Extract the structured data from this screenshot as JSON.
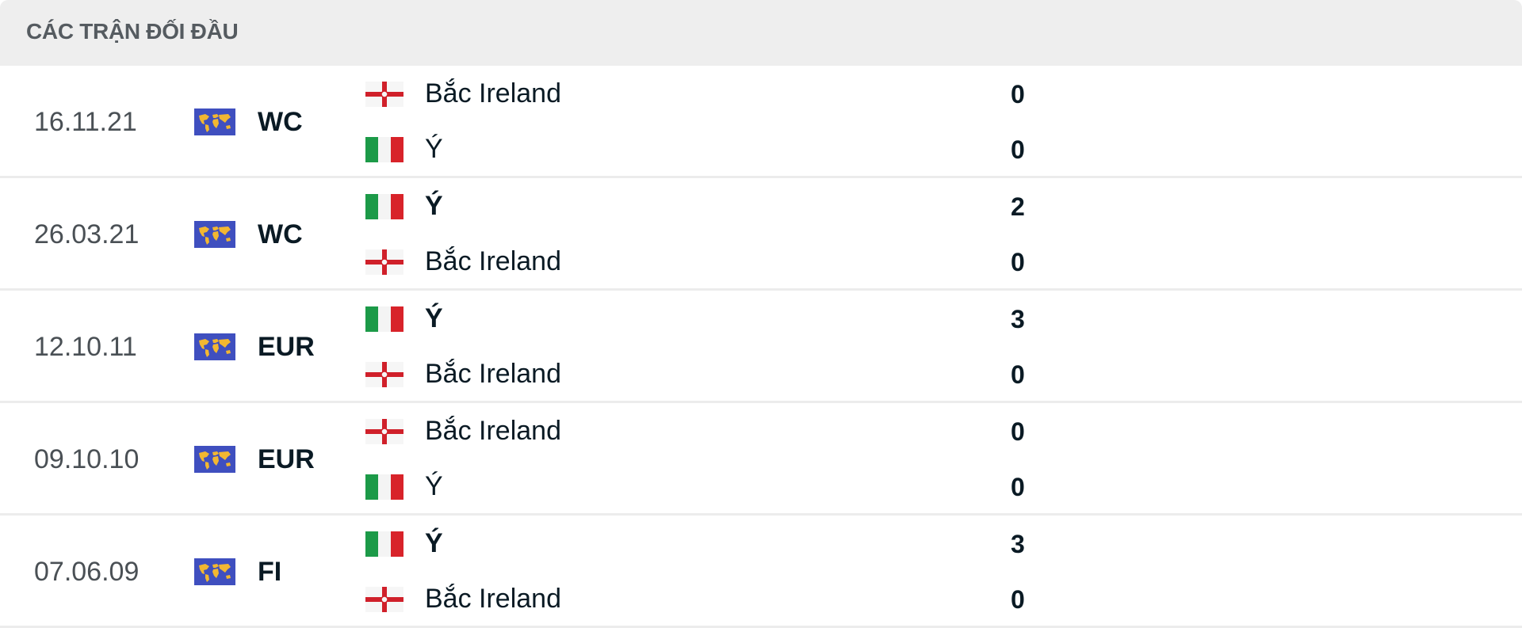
{
  "header": {
    "title": "CÁC TRẬN ĐỐI ĐẦU"
  },
  "colors": {
    "comp_icon_bg": "#3f4fbf",
    "comp_icon_map": "#f2b731",
    "italy_green": "#1c9a48",
    "italy_red": "#d8232a",
    "ni_red": "#d0202a"
  },
  "matches": [
    {
      "date": "16.11.21",
      "competition": "WC",
      "competition_icon": "world-map-icon",
      "home": {
        "name": "Bắc Ireland",
        "flag": "northern-ireland-flag",
        "score": "0",
        "winner": false
      },
      "away": {
        "name": "Ý",
        "flag": "italy-flag",
        "score": "0",
        "winner": false
      }
    },
    {
      "date": "26.03.21",
      "competition": "WC",
      "competition_icon": "world-map-icon",
      "home": {
        "name": "Ý",
        "flag": "italy-flag",
        "score": "2",
        "winner": true
      },
      "away": {
        "name": "Bắc Ireland",
        "flag": "northern-ireland-flag",
        "score": "0",
        "winner": false
      }
    },
    {
      "date": "12.10.11",
      "competition": "EUR",
      "competition_icon": "world-map-icon",
      "home": {
        "name": "Ý",
        "flag": "italy-flag",
        "score": "3",
        "winner": true
      },
      "away": {
        "name": "Bắc Ireland",
        "flag": "northern-ireland-flag",
        "score": "0",
        "winner": false
      }
    },
    {
      "date": "09.10.10",
      "competition": "EUR",
      "competition_icon": "world-map-icon",
      "home": {
        "name": "Bắc Ireland",
        "flag": "northern-ireland-flag",
        "score": "0",
        "winner": false
      },
      "away": {
        "name": "Ý",
        "flag": "italy-flag",
        "score": "0",
        "winner": false
      }
    },
    {
      "date": "07.06.09",
      "competition": "FI",
      "competition_icon": "world-map-icon",
      "home": {
        "name": "Ý",
        "flag": "italy-flag",
        "score": "3",
        "winner": true
      },
      "away": {
        "name": "Bắc Ireland",
        "flag": "northern-ireland-flag",
        "score": "0",
        "winner": false
      }
    }
  ]
}
